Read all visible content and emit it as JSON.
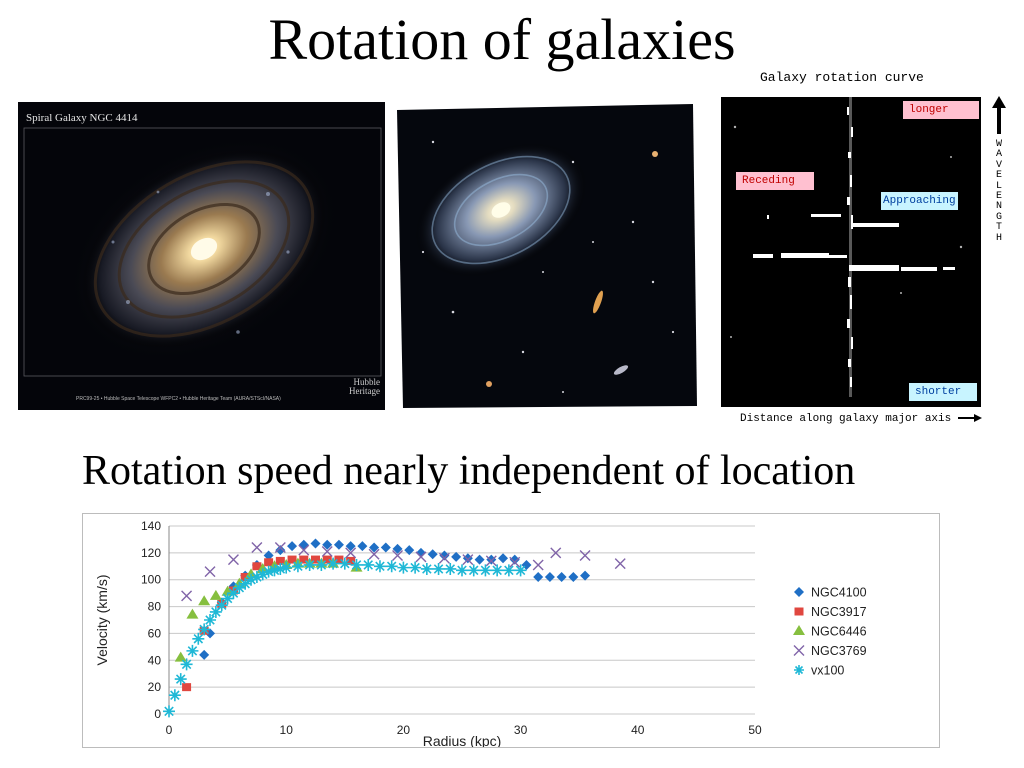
{
  "slide": {
    "title": "Rotation of galaxies",
    "subtitle": "Rotation speed nearly independent of location"
  },
  "photo1": {
    "title": "Spiral Galaxy NGC 4414",
    "credit": "PRC99-25 • Hubble Space Telescope WFPC2 • Hubble Heritage Team (AURA/STScI/NASA)",
    "logo": "Hubble Heritage"
  },
  "rotation_curve": {
    "title": "Galaxy rotation curve",
    "longer": "longer",
    "shorter": "shorter",
    "receding": "Receding",
    "approaching": "Approaching",
    "wavelength": [
      "W",
      "A",
      "V",
      "E",
      "L",
      "E",
      "N",
      "G",
      "T",
      "H"
    ],
    "x_label": "Distance along galaxy major axis"
  },
  "colors": {
    "NGC4100": "#1f6fc5",
    "NGC3917": "#e0473f",
    "NGC6446": "#86bf3f",
    "NGC3769": "#8064a8",
    "vx100": "#1fb8d6"
  },
  "chart_data": {
    "type": "scatter",
    "xlabel": "Radius (kpc)",
    "ylabel": "Velocity (km/s)",
    "xlim": [
      0,
      50
    ],
    "ylim": [
      0,
      140
    ],
    "xticks": [
      0,
      10,
      20,
      30,
      40,
      50
    ],
    "yticks": [
      0,
      20,
      40,
      60,
      80,
      100,
      120,
      140
    ],
    "grid": true,
    "legend": "right",
    "series": [
      {
        "name": "NGC4100",
        "marker": "diamond",
        "x": [
          3.0,
          3.5,
          4.5,
          5.5,
          6.5,
          7.5,
          8.5,
          9.5,
          10.5,
          11.5,
          12.5,
          13.5,
          14.5,
          15.5,
          16.5,
          17.5,
          18.5,
          19.5,
          20.5,
          21.5,
          22.5,
          23.5,
          24.5,
          25.5,
          26.5,
          27.5,
          28.5,
          29.5,
          30.5,
          31.5,
          32.5,
          33.5,
          34.5,
          35.5
        ],
        "y": [
          44,
          60,
          83,
          95,
          103,
          111,
          118,
          122,
          125,
          126,
          127,
          126,
          126,
          125,
          125,
          124,
          124,
          123,
          122,
          120,
          119,
          118,
          117,
          116,
          115,
          115,
          116,
          115,
          111,
          102,
          102,
          102,
          102,
          103
        ]
      },
      {
        "name": "NGC3917",
        "marker": "square",
        "x": [
          1.5,
          3.0,
          4.5,
          5.5,
          6.5,
          7.5,
          8.5,
          9.5,
          10.5,
          11.5,
          12.5,
          13.5,
          14.5,
          15.5
        ],
        "y": [
          20,
          62,
          82,
          92,
          102,
          110,
          113,
          114,
          115,
          115,
          115,
          115,
          115,
          114
        ]
      },
      {
        "name": "NGC6446",
        "marker": "triangle",
        "x": [
          1.0,
          2.0,
          3.0,
          4.0,
          5.0,
          6.0,
          7.0,
          8.0,
          9.0,
          10.0,
          11.0,
          12.0,
          13.0,
          14.0,
          16.0
        ],
        "y": [
          42,
          74,
          84,
          88,
          91,
          97,
          104,
          108,
          110,
          111,
          112,
          112,
          112,
          112,
          109
        ]
      },
      {
        "name": "NGC3769",
        "marker": "x",
        "x": [
          1.5,
          3.5,
          5.5,
          7.5,
          9.5,
          11.5,
          13.5,
          15.5,
          17.5,
          19.5,
          21.5,
          23.5,
          25.5,
          27.5,
          29.5,
          31.5,
          33.0,
          35.5,
          38.5
        ],
        "y": [
          88,
          106,
          115,
          124,
          124,
          122,
          121,
          120,
          119,
          118,
          117,
          116,
          115,
          114,
          113,
          111,
          120,
          118,
          112
        ]
      },
      {
        "name": "vx100",
        "marker": "asterisk",
        "x": [
          0.0,
          0.5,
          1.0,
          1.5,
          2.0,
          2.5,
          3.0,
          3.5,
          4.0,
          4.5,
          5.0,
          5.5,
          6.0,
          6.5,
          7.0,
          7.5,
          8.0,
          8.5,
          9.0,
          9.5,
          10.0,
          11.0,
          12.0,
          13.0,
          14.0,
          15.0,
          16.0,
          17.0,
          18.0,
          19.0,
          20.0,
          21.0,
          22.0,
          23.0,
          24.0,
          25.0,
          26.0,
          27.0,
          28.0,
          29.0,
          30.0
        ],
        "y": [
          2,
          14,
          26,
          37,
          47,
          56,
          63,
          70,
          76,
          81,
          86,
          90,
          94,
          97,
          100,
          102,
          104,
          106,
          107,
          108,
          109,
          110,
          111,
          111,
          112,
          112,
          111,
          111,
          110,
          110,
          109,
          109,
          108,
          108,
          108,
          107,
          107,
          107,
          107,
          107,
          107
        ]
      }
    ]
  }
}
